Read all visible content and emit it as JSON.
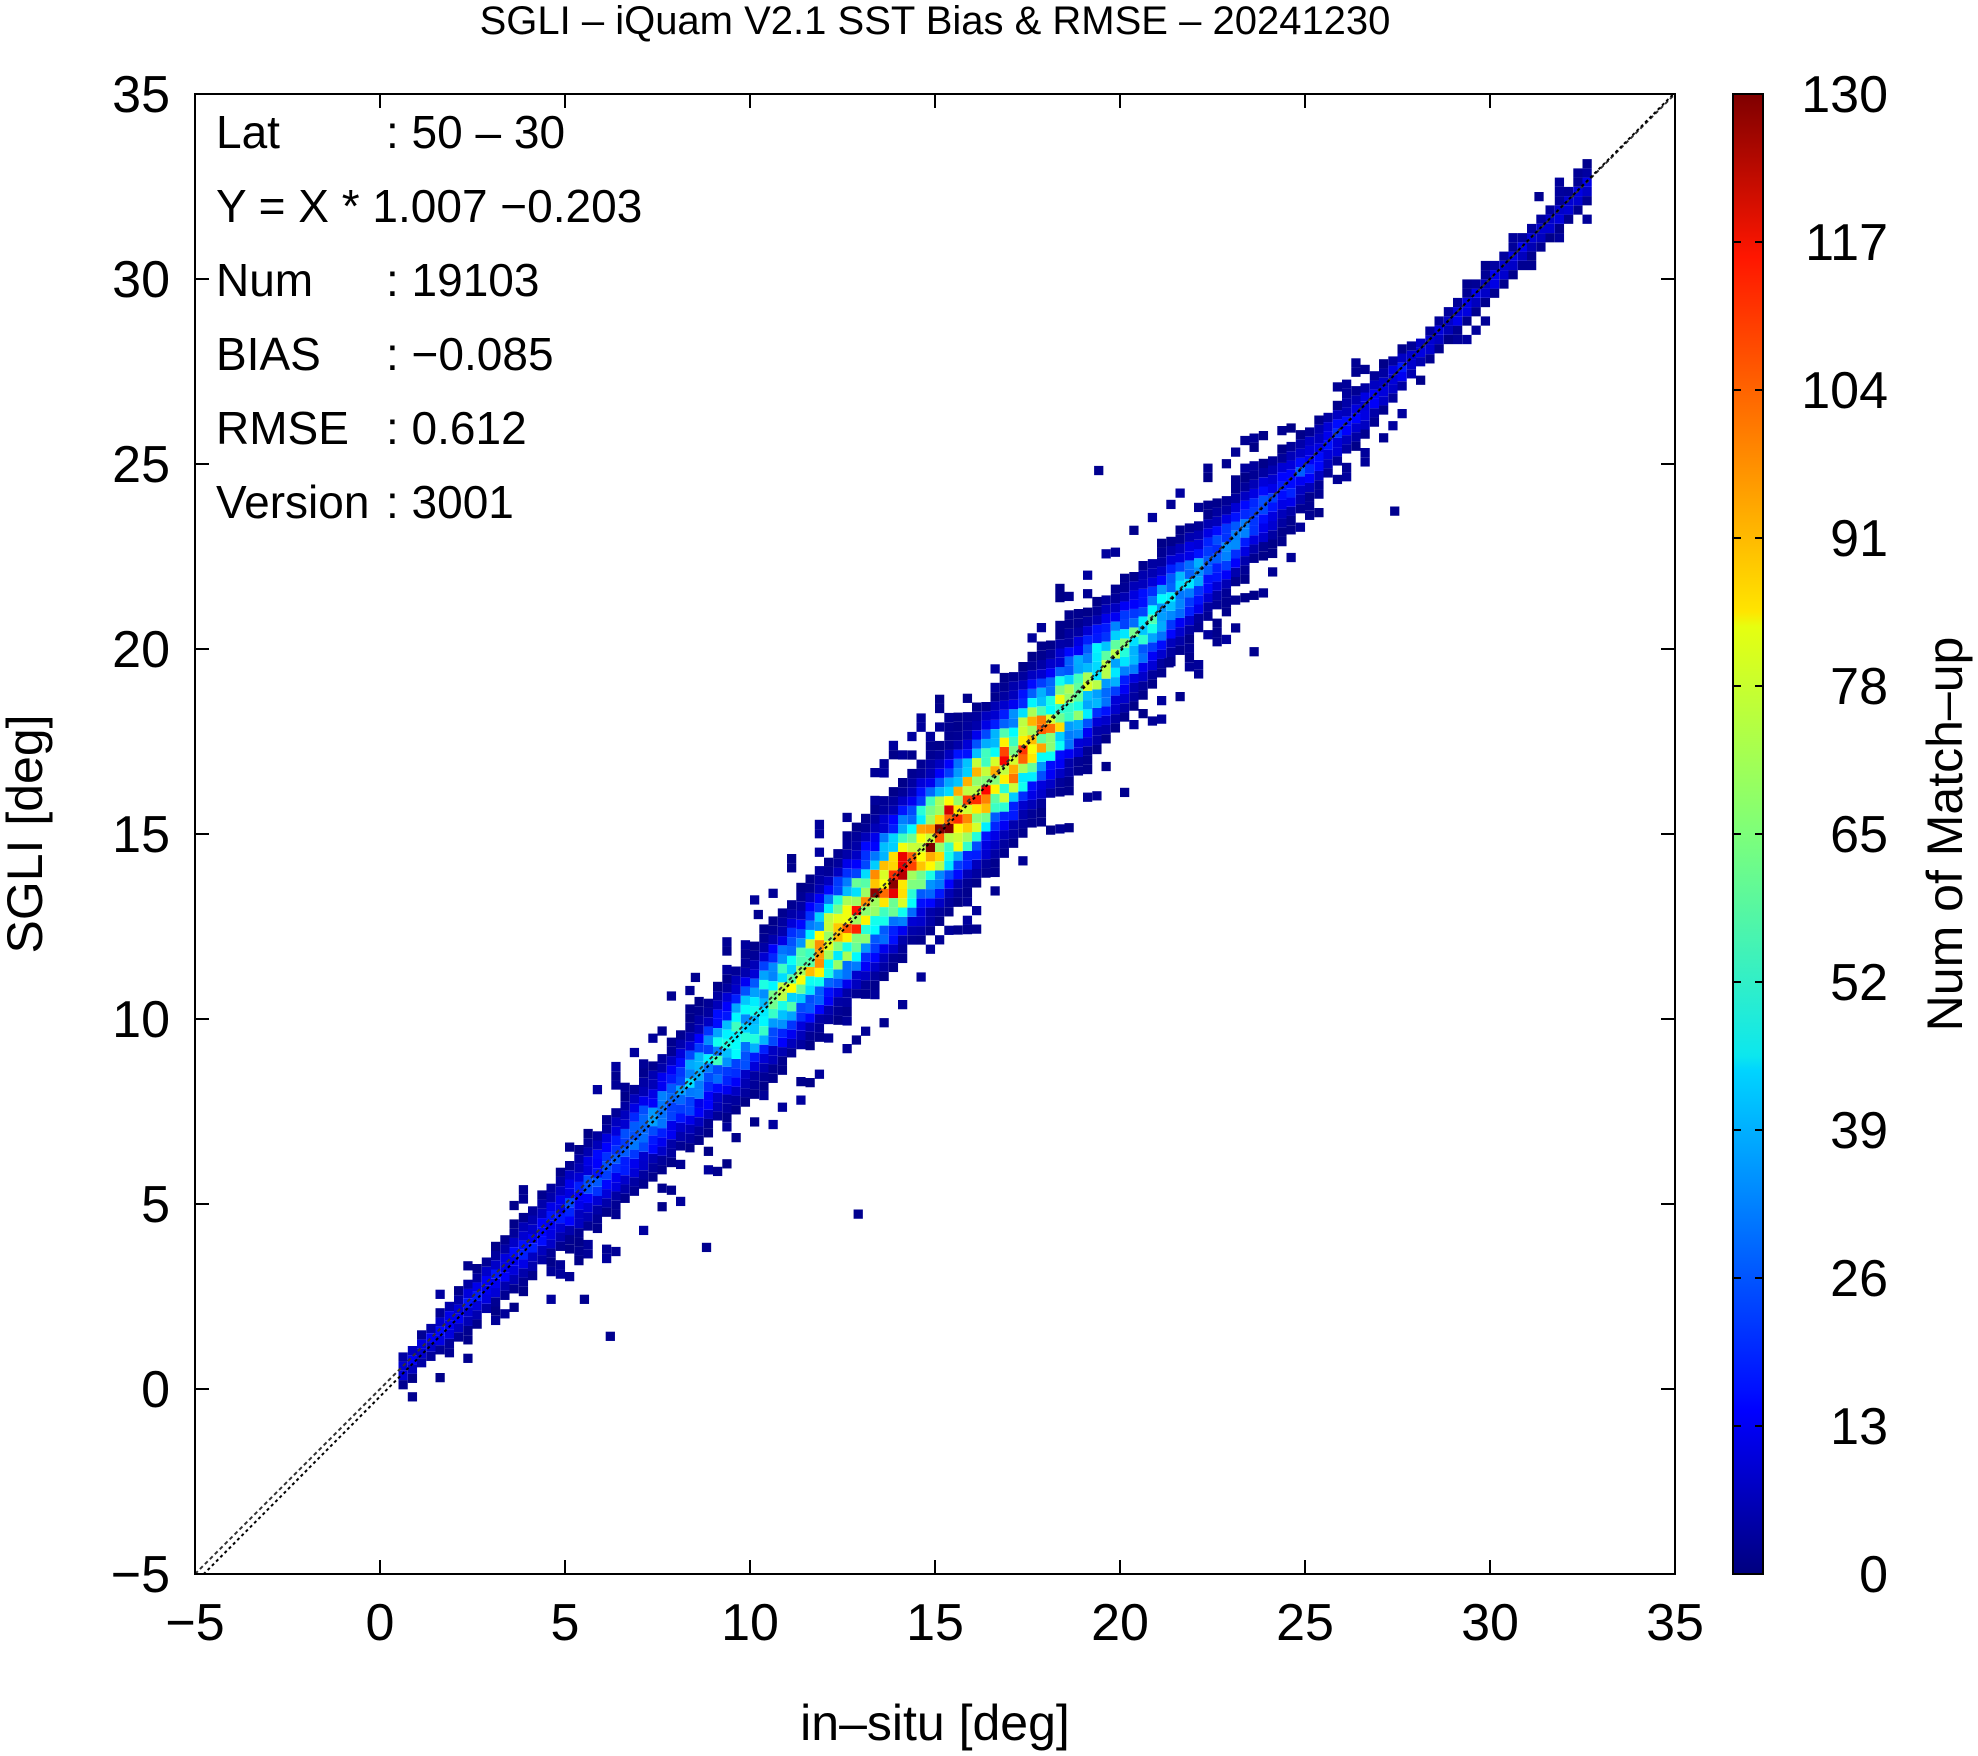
{
  "chart_data": {
    "type": "heatmap",
    "title": "SGLI – iQuam V2.1 SST Bias & RMSE  – 20241230",
    "xlabel": "in–situ [deg]",
    "ylabel": "SGLI [deg]",
    "xlim": [
      -5,
      35
    ],
    "ylim": [
      -5,
      35
    ],
    "x_ticks": [
      "−5",
      "0",
      "5",
      "10",
      "15",
      "20",
      "25",
      "30",
      "35"
    ],
    "y_ticks": [
      "−5",
      "0",
      "5",
      "10",
      "15",
      "20",
      "25",
      "30",
      "35"
    ],
    "x_tick_values": [
      -5,
      0,
      5,
      10,
      15,
      20,
      25,
      30,
      35
    ],
    "y_tick_values": [
      -5,
      0,
      5,
      10,
      15,
      20,
      25,
      30,
      35
    ],
    "grid": false,
    "stats": [
      {
        "label": "Lat",
        "value": ": 50 – 30"
      },
      {
        "label": "Y = X * 1.007 −0.203",
        "value": ""
      },
      {
        "label": "Num",
        "value": ": 19103"
      },
      {
        "label": "BIAS",
        "value": ": −0.085"
      },
      {
        "label": "RMSE",
        "value": ": 0.612"
      },
      {
        "label": "Version",
        "value": ": 3001"
      }
    ],
    "regression": {
      "slope": 1.007,
      "intercept": -0.203
    },
    "reference_line": "1:1",
    "colorbar": {
      "label": "Num of Match–up",
      "min": 0,
      "max": 130,
      "ticks": [
        "0",
        "13",
        "26",
        "39",
        "52",
        "65",
        "78",
        "91",
        "104",
        "117",
        "130"
      ],
      "tick_values": [
        0,
        13,
        26,
        39,
        52,
        65,
        78,
        91,
        104,
        117,
        130
      ],
      "colormap": "jet"
    },
    "density": {
      "bin_size": 0.25,
      "x_range": [
        0.5,
        32.5
      ],
      "center_offset": -0.1,
      "spread_min": 0.35,
      "spread_max": 1.4,
      "peak": {
        "x": 14.8,
        "y": 14.5,
        "value": 120
      },
      "outliers": [
        {
          "x": 5.4,
          "y": 2.3
        },
        {
          "x": 6.1,
          "y": 1.3
        },
        {
          "x": 8.7,
          "y": 3.7
        },
        {
          "x": 12.8,
          "y": 4.6
        },
        {
          "x": 10.1,
          "y": 12.7
        },
        {
          "x": 21.2,
          "y": 19.5
        },
        {
          "x": 27.3,
          "y": 23.6
        },
        {
          "x": 8.4,
          "y": 11.0
        },
        {
          "x": 20.0,
          "y": 16.0
        },
        {
          "x": 23.5,
          "y": 19.8
        },
        {
          "x": 19.3,
          "y": 24.7
        },
        {
          "x": 31.2,
          "y": 32.1
        }
      ]
    },
    "colors": {
      "axes": "#000000",
      "ref_line": "#333333",
      "reg_line": "#000000"
    }
  }
}
